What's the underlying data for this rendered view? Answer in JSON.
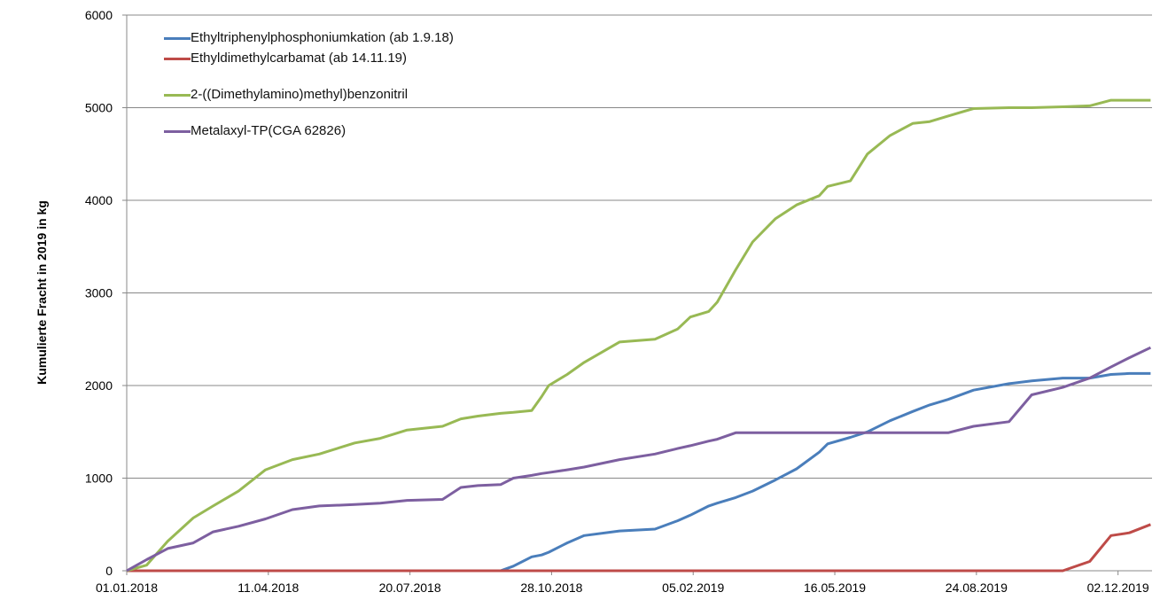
{
  "chart_data": {
    "type": "line",
    "y_label": "Kumulierte Fracht in 2019 in  kg",
    "x": [
      "2018-01-01",
      "2018-01-15",
      "2018-01-30",
      "2018-02-17",
      "2018-03-03",
      "2018-03-21",
      "2018-04-09",
      "2018-04-28",
      "2018-05-17",
      "2018-06-11",
      "2018-06-29",
      "2018-07-18",
      "2018-08-12",
      "2018-08-25",
      "2018-09-06",
      "2018-09-22",
      "2018-10-01",
      "2018-10-14",
      "2018-10-21",
      "2018-10-26",
      "2018-11-08",
      "2018-11-20",
      "2018-12-15",
      "2019-01-09",
      "2019-01-25",
      "2019-02-03",
      "2019-02-16",
      "2019-02-22",
      "2019-03-07",
      "2019-03-19",
      "2019-04-04",
      "2019-04-19",
      "2019-05-05",
      "2019-05-11",
      "2019-05-27",
      "2019-06-08",
      "2019-06-24",
      "2019-07-10",
      "2019-07-22",
      "2019-08-04",
      "2019-08-22",
      "2019-09-16",
      "2019-10-02",
      "2019-10-24",
      "2019-11-12",
      "2019-11-27",
      "2019-12-10",
      "2019-12-25"
    ],
    "series": [
      {
        "name": "Ethyltriphenylphosphoniumkation (ab 1.9.18)",
        "color": "#4a7ebb",
        "values": [
          0,
          0,
          0,
          0,
          0,
          0,
          0,
          0,
          0,
          0,
          0,
          0,
          0,
          0,
          0,
          0,
          50,
          150,
          170,
          200,
          300,
          380,
          430,
          450,
          540,
          600,
          700,
          730,
          790,
          860,
          980,
          1100,
          1280,
          1370,
          1440,
          1500,
          1620,
          1720,
          1790,
          1850,
          1950,
          2020,
          2050,
          2080,
          2080,
          2120,
          2130,
          2130
        ]
      },
      {
        "name": "Ethyldimethylcarbamat (ab 14.11.19)",
        "color": "#be4b48",
        "values": [
          0,
          0,
          0,
          0,
          0,
          0,
          0,
          0,
          0,
          0,
          0,
          0,
          0,
          0,
          0,
          0,
          0,
          0,
          0,
          0,
          0,
          0,
          0,
          0,
          0,
          0,
          0,
          0,
          0,
          0,
          0,
          0,
          0,
          0,
          0,
          0,
          0,
          0,
          0,
          0,
          0,
          0,
          0,
          0,
          100,
          380,
          410,
          500
        ]
      },
      {
        "name": "2-((Dimethylamino)methyl)benzonitril",
        "color": "#98b954",
        "values": [
          0,
          60,
          320,
          570,
          700,
          860,
          1090,
          1200,
          1260,
          1380,
          1430,
          1520,
          1560,
          1640,
          1670,
          1700,
          1710,
          1730,
          1880,
          2000,
          2120,
          2250,
          2470,
          2500,
          2610,
          2740,
          2800,
          2900,
          3250,
          3550,
          3800,
          3950,
          4050,
          4150,
          4210,
          4500,
          4700,
          4830,
          4850,
          4910,
          4990,
          5000,
          5000,
          5010,
          5020,
          5080,
          5080,
          5080
        ]
      },
      {
        "name": "Metalaxyl-TP(CGA 62826)",
        "color": "#7d5fa0",
        "values": [
          0,
          120,
          240,
          300,
          420,
          480,
          560,
          660,
          700,
          715,
          730,
          760,
          770,
          900,
          920,
          930,
          1000,
          1030,
          1050,
          1060,
          1090,
          1120,
          1200,
          1260,
          1320,
          1350,
          1400,
          1420,
          1490,
          1490,
          1490,
          1490,
          1490,
          1490,
          1490,
          1490,
          1490,
          1490,
          1490,
          1490,
          1560,
          1610,
          1900,
          1980,
          2080,
          2200,
          2300,
          2410
        ]
      }
    ],
    "xlim": [
      "2018-01-01",
      "2019-12-26"
    ],
    "xticks": [
      {
        "value": "2018-01-01",
        "label": "01.01.2018"
      },
      {
        "value": "2018-04-11",
        "label": "11.04.2018"
      },
      {
        "value": "2018-07-20",
        "label": "20.07.2018"
      },
      {
        "value": "2018-10-28",
        "label": "28.10.2018"
      },
      {
        "value": "2019-02-05",
        "label": "05.02.2019"
      },
      {
        "value": "2019-05-16",
        "label": "16.05.2019"
      },
      {
        "value": "2019-08-24",
        "label": "24.08.2019"
      },
      {
        "value": "2019-12-02",
        "label": "02.12.2019"
      }
    ],
    "ylim": [
      0,
      6000
    ],
    "yticks": [
      0,
      1000,
      2000,
      3000,
      4000,
      5000,
      6000
    ],
    "grid": true
  }
}
